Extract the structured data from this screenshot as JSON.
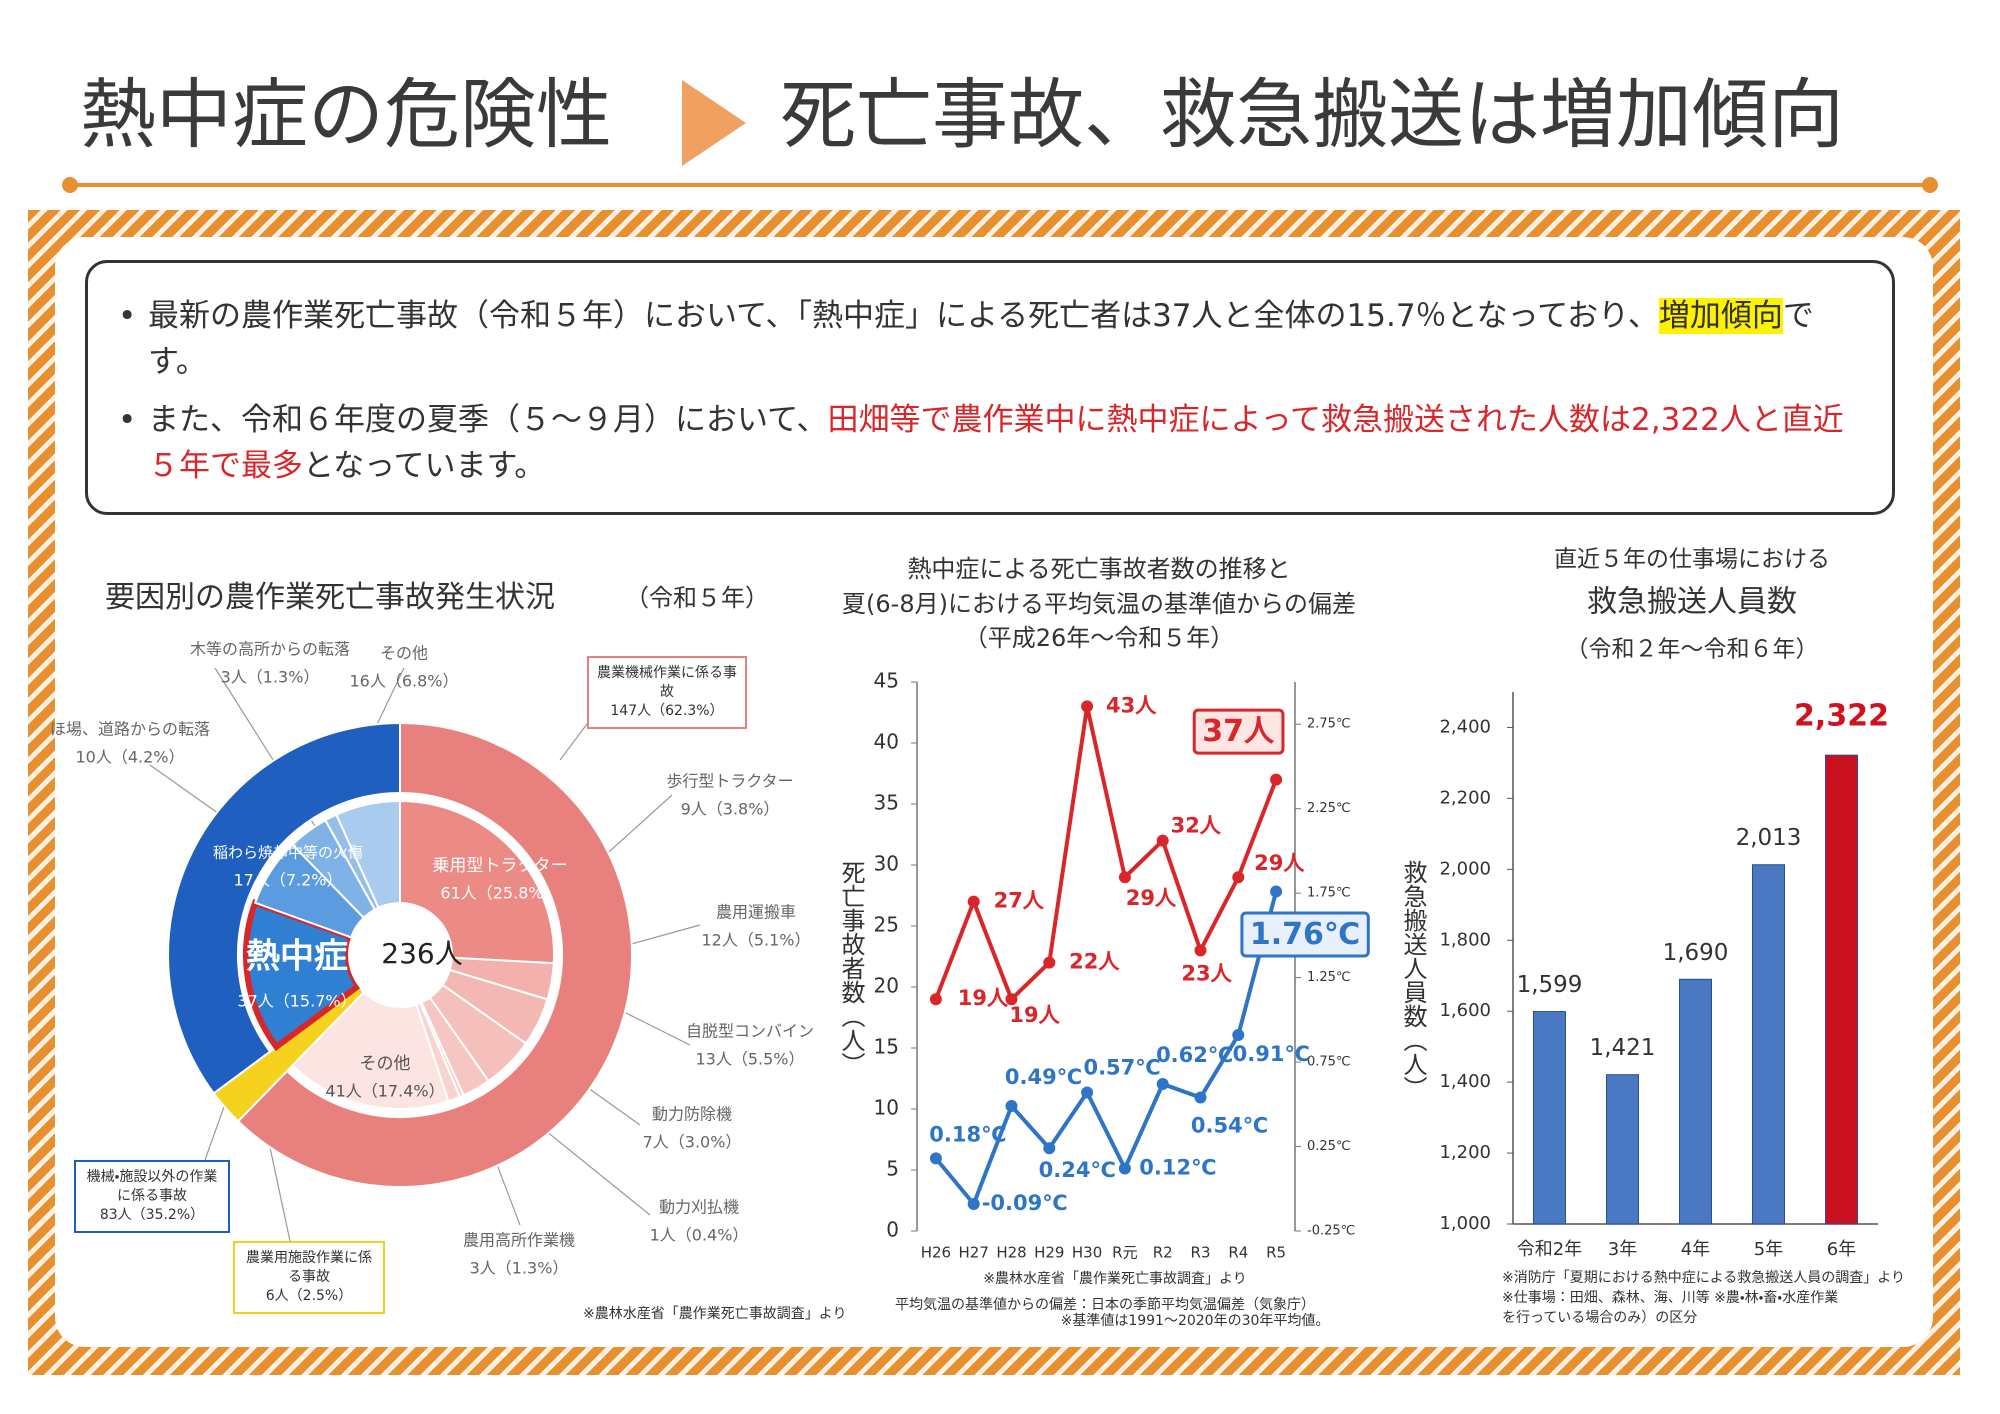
{
  "header": {
    "title_left": "熱中症の危険性",
    "title_right": "死亡事故、救急搬送は増加傾向"
  },
  "bullets": [
    {
      "segments": [
        {
          "text": "最新の農作業死亡事故（令和５年）において、「熱中症」による死亡者は37人と全体の15.7％となっており、",
          "style": "normal"
        },
        {
          "text": "増加傾向",
          "style": "highlight"
        },
        {
          "text": "です。",
          "style": "normal"
        }
      ]
    },
    {
      "segments": [
        {
          "text": "また、令和６年度の夏季（５～９月）において、",
          "style": "normal"
        },
        {
          "text": "田畑等で農作業中に熱中症によって救急搬送された人数は2,322人と直近５年で最多",
          "style": "red"
        },
        {
          "text": "となっています。",
          "style": "normal"
        }
      ]
    }
  ],
  "chart_data": [
    {
      "type": "sunburst",
      "title": "要因別の農作業死亡事故発生状況",
      "subtitle": "（令和５年）",
      "center_label": "236人",
      "groups": [
        {
          "name": "農業機械作業に係る事故",
          "value": 147,
          "value_label": "147人（62.3%）",
          "color": "#e8807e",
          "categories": [
            "乗用型トラクター",
            "歩行型トラクター",
            "農用運搬車",
            "自脱型コンバイン",
            "動力防除機",
            "動力刈払機",
            "農用高所作業機",
            "その他"
          ],
          "values": [
            61,
            9,
            12,
            13,
            7,
            1,
            3,
            41
          ],
          "value_labels": [
            "61人（25.8%）",
            "9人（3.8%）",
            "12人（5.1%）",
            "13人（5.5%）",
            "7人（3.0%）",
            "1人（0.4%）",
            "3人（1.3%）",
            "41人（17.4%）"
          ],
          "colors": [
            "#ec8a86",
            "#f3b1ad",
            "#f4b8b4",
            "#f5bfbb",
            "#f6c6c2",
            "#f7cdc9",
            "#f8d4d0",
            "#fbe4e2"
          ]
        },
        {
          "name": "農業用施設作業に係る事故",
          "value": 6,
          "value_label": "6人（2.5%）",
          "color": "#f5d21e",
          "categories": [],
          "values": [],
          "value_labels": [],
          "colors": []
        },
        {
          "name": "機械・施設以外の作業に係る事故",
          "value": 83,
          "value_label": "83人（35.2%）",
          "color": "#1f5fbf",
          "categories": [
            "熱中症",
            "稲わら焼却中等の火傷",
            "ほ場、道路からの転落",
            "木等の高所からの転落",
            "その他"
          ],
          "values": [
            37,
            17,
            10,
            3,
            16
          ],
          "value_labels": [
            "37人（15.7%）",
            "17人（7.2%）",
            "10人（4.2%）",
            "3人（1.3%）",
            "16人（6.8%）"
          ],
          "colors": [
            "#2f80d2",
            "#5b9be0",
            "#7fb2e6",
            "#95bfea",
            "#a9cbee"
          ]
        }
      ],
      "note": "※農林水産省「農作業死亡事故調査」より"
    },
    {
      "type": "line",
      "title": [
        "熱中症による死亡事故者数の推移と",
        "夏(6-8月)における平均気温の基準値からの偏差"
      ],
      "subtitle": "（平成26年～令和５年）",
      "y_label": "死亡事故者数（人）",
      "categories": [
        "H26",
        "H27",
        "H28",
        "H29",
        "H30",
        "R元",
        "R2",
        "R3",
        "R4",
        "R5"
      ],
      "series": [
        {
          "color": "#d9262a",
          "values": [
            19,
            27,
            19,
            22,
            43,
            29,
            32,
            23,
            29,
            37
          ],
          "value_labels": [
            "19人",
            "27人",
            "19人",
            "22人",
            "43人",
            "29人",
            "32人",
            "23人",
            "29人",
            "37人"
          ]
        },
        {
          "color": "#2e75c7",
          "axis": "y2",
          "values": [
            0.18,
            -0.09,
            0.49,
            0.24,
            0.57,
            0.12,
            0.62,
            0.54,
            0.91,
            1.76
          ],
          "value_labels": [
            "0.18℃",
            "-0.09℃",
            "0.49℃",
            "0.24℃",
            "0.57℃",
            "0.12℃",
            "0.62℃",
            "0.54℃",
            "0.91℃",
            "1.76℃"
          ]
        }
      ],
      "ylim": [
        0,
        45
      ],
      "yticks": [
        0,
        5,
        10,
        15,
        20,
        25,
        30,
        35,
        40,
        45
      ],
      "y2lim": [
        -0.25,
        3.0
      ],
      "y2ticks": [
        {
          "value": -0.25,
          "label": "-0.25℃"
        },
        {
          "value": 0.25,
          "label": "0.25℃"
        },
        {
          "value": 0.75,
          "label": "0.75℃"
        },
        {
          "value": 1.25,
          "label": "1.25℃"
        },
        {
          "value": 1.75,
          "label": "1.75℃"
        },
        {
          "value": 2.25,
          "label": "2.25℃"
        },
        {
          "value": 2.75,
          "label": "2.75℃"
        }
      ],
      "notes": [
        "※農林水産省「農作業死亡事故調査」より",
        "平均気温の基準値からの偏差：日本の季節平均気温偏差（気象庁）",
        "※基準値は1991～2020年の30年平均値。"
      ]
    },
    {
      "type": "bar",
      "title": [
        "直近５年の仕事場における",
        "救急搬送人員数"
      ],
      "subtitle": "（令和２年～令和６年）",
      "y_label": "救急搬送人員数（人）",
      "categories": [
        "令和2年",
        "3年",
        "4年",
        "5年",
        "6年"
      ],
      "values": [
        1599,
        1421,
        1690,
        2013,
        2322
      ],
      "value_labels": [
        "1,599",
        "1,421",
        "1,690",
        "2,013",
        "2,322"
      ],
      "colors": [
        "#4a78c2",
        "#4a78c2",
        "#4a78c2",
        "#4a78c2",
        "#c8101e"
      ],
      "label_colors": [
        "#333333",
        "#333333",
        "#333333",
        "#333333",
        "#d0121e"
      ],
      "ylim": [
        1000,
        2500
      ],
      "yticks": [
        {
          "value": 1000,
          "label": "1,000"
        },
        {
          "value": 1200,
          "label": "1,200"
        },
        {
          "value": 1400,
          "label": "1,400"
        },
        {
          "value": 1600,
          "label": "1,600"
        },
        {
          "value": 1800,
          "label": "1,800"
        },
        {
          "value": 2000,
          "label": "2,000"
        },
        {
          "value": 2200,
          "label": "2,200"
        },
        {
          "value": 2400,
          "label": "2,400"
        }
      ],
      "notes": [
        "※消防庁「夏期における熱中症による救急搬送人員の調査」より",
        "※仕事場：田畑、森林、海、川等 ※農・林・畜・水産作業",
        "を行っている場合のみ）の区分"
      ]
    }
  ]
}
